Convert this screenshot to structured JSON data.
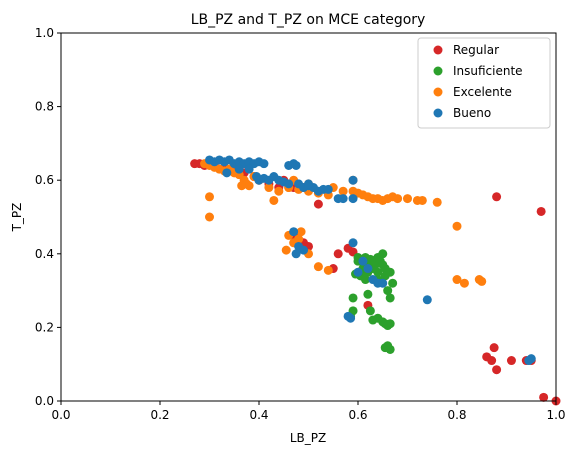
{
  "chart_data": {
    "type": "scatter",
    "title": "LB_PZ and T_PZ on MCE category",
    "xlabel": "LB_PZ",
    "ylabel": "T_PZ",
    "xlim": [
      0.0,
      1.0
    ],
    "ylim": [
      0.0,
      1.0
    ],
    "xticks": [
      "0.0",
      "0.2",
      "0.4",
      "0.6",
      "0.8",
      "1.0"
    ],
    "yticks": [
      "0.0",
      "0.2",
      "0.4",
      "0.6",
      "0.8",
      "1.0"
    ],
    "grid": false,
    "legend_position": "top-right",
    "series": [
      {
        "name": "Regular",
        "color": "#d62728",
        "points": [
          [
            0.27,
            0.645
          ],
          [
            0.28,
            0.645
          ],
          [
            0.29,
            0.64
          ],
          [
            0.31,
            0.64
          ],
          [
            0.33,
            0.635
          ],
          [
            0.35,
            0.63
          ],
          [
            0.37,
            0.62
          ],
          [
            0.39,
            0.61
          ],
          [
            0.4,
            0.6
          ],
          [
            0.42,
            0.59
          ],
          [
            0.44,
            0.58
          ],
          [
            0.45,
            0.6
          ],
          [
            0.47,
            0.58
          ],
          [
            0.49,
            0.58
          ],
          [
            0.52,
            0.535
          ],
          [
            0.47,
            0.45
          ],
          [
            0.49,
            0.43
          ],
          [
            0.5,
            0.42
          ],
          [
            0.55,
            0.36
          ],
          [
            0.56,
            0.4
          ],
          [
            0.58,
            0.415
          ],
          [
            0.59,
            0.405
          ],
          [
            0.62,
            0.26
          ],
          [
            0.86,
            0.12
          ],
          [
            0.87,
            0.11
          ],
          [
            0.875,
            0.145
          ],
          [
            0.88,
            0.085
          ],
          [
            0.88,
            0.555
          ],
          [
            0.91,
            0.11
          ],
          [
            0.94,
            0.11
          ],
          [
            0.95,
            0.11
          ],
          [
            0.97,
            0.515
          ],
          [
            0.975,
            0.01
          ],
          [
            1.0,
            0.0
          ]
        ]
      },
      {
        "name": "Insuficiente",
        "color": "#2ca02c",
        "points": [
          [
            0.585,
            0.23
          ],
          [
            0.59,
            0.245
          ],
          [
            0.59,
            0.28
          ],
          [
            0.595,
            0.345
          ],
          [
            0.6,
            0.38
          ],
          [
            0.6,
            0.39
          ],
          [
            0.61,
            0.375
          ],
          [
            0.61,
            0.36
          ],
          [
            0.615,
            0.39
          ],
          [
            0.62,
            0.37
          ],
          [
            0.62,
            0.35
          ],
          [
            0.625,
            0.385
          ],
          [
            0.63,
            0.38
          ],
          [
            0.63,
            0.36
          ],
          [
            0.635,
            0.37
          ],
          [
            0.64,
            0.39
          ],
          [
            0.64,
            0.35
          ],
          [
            0.645,
            0.38
          ],
          [
            0.65,
            0.4
          ],
          [
            0.65,
            0.37
          ],
          [
            0.655,
            0.36
          ],
          [
            0.655,
            0.34
          ],
          [
            0.66,
            0.3
          ],
          [
            0.665,
            0.28
          ],
          [
            0.665,
            0.35
          ],
          [
            0.67,
            0.32
          ],
          [
            0.62,
            0.29
          ],
          [
            0.625,
            0.245
          ],
          [
            0.63,
            0.22
          ],
          [
            0.64,
            0.225
          ],
          [
            0.65,
            0.215
          ],
          [
            0.655,
            0.21
          ],
          [
            0.66,
            0.205
          ],
          [
            0.665,
            0.21
          ],
          [
            0.66,
            0.15
          ],
          [
            0.665,
            0.14
          ],
          [
            0.655,
            0.145
          ],
          [
            0.605,
            0.34
          ],
          [
            0.615,
            0.33
          ],
          [
            0.64,
            0.33
          ]
        ]
      },
      {
        "name": "Excelente",
        "color": "#ff7f0e",
        "points": [
          [
            0.29,
            0.645
          ],
          [
            0.3,
            0.64
          ],
          [
            0.31,
            0.635
          ],
          [
            0.32,
            0.63
          ],
          [
            0.33,
            0.625
          ],
          [
            0.34,
            0.63
          ],
          [
            0.35,
            0.62
          ],
          [
            0.36,
            0.615
          ],
          [
            0.37,
            0.6
          ],
          [
            0.375,
            0.59
          ],
          [
            0.38,
            0.585
          ],
          [
            0.39,
            0.61
          ],
          [
            0.4,
            0.6
          ],
          [
            0.42,
            0.58
          ],
          [
            0.44,
            0.57
          ],
          [
            0.46,
            0.58
          ],
          [
            0.48,
            0.575
          ],
          [
            0.5,
            0.57
          ],
          [
            0.52,
            0.565
          ],
          [
            0.54,
            0.56
          ],
          [
            0.55,
            0.58
          ],
          [
            0.57,
            0.57
          ],
          [
            0.59,
            0.57
          ],
          [
            0.6,
            0.565
          ],
          [
            0.59,
            0.6
          ],
          [
            0.61,
            0.56
          ],
          [
            0.62,
            0.555
          ],
          [
            0.63,
            0.55
          ],
          [
            0.64,
            0.55
          ],
          [
            0.65,
            0.545
          ],
          [
            0.66,
            0.55
          ],
          [
            0.67,
            0.555
          ],
          [
            0.68,
            0.55
          ],
          [
            0.7,
            0.55
          ],
          [
            0.72,
            0.545
          ],
          [
            0.73,
            0.545
          ],
          [
            0.76,
            0.54
          ],
          [
            0.8,
            0.475
          ],
          [
            0.3,
            0.555
          ],
          [
            0.3,
            0.5
          ],
          [
            0.365,
            0.585
          ],
          [
            0.43,
            0.545
          ],
          [
            0.46,
            0.45
          ],
          [
            0.47,
            0.43
          ],
          [
            0.48,
            0.44
          ],
          [
            0.5,
            0.4
          ],
          [
            0.52,
            0.365
          ],
          [
            0.54,
            0.355
          ],
          [
            0.8,
            0.33
          ],
          [
            0.815,
            0.32
          ],
          [
            0.845,
            0.33
          ],
          [
            0.85,
            0.325
          ],
          [
            0.455,
            0.41
          ],
          [
            0.485,
            0.46
          ],
          [
            0.46,
            0.58
          ],
          [
            0.47,
            0.6
          ],
          [
            0.5,
            0.59
          ]
        ]
      },
      {
        "name": "Bueno",
        "color": "#1f77b4",
        "points": [
          [
            0.3,
            0.655
          ],
          [
            0.31,
            0.65
          ],
          [
            0.32,
            0.655
          ],
          [
            0.33,
            0.65
          ],
          [
            0.34,
            0.655
          ],
          [
            0.35,
            0.645
          ],
          [
            0.36,
            0.65
          ],
          [
            0.37,
            0.645
          ],
          [
            0.38,
            0.65
          ],
          [
            0.39,
            0.645
          ],
          [
            0.4,
            0.65
          ],
          [
            0.41,
            0.645
          ],
          [
            0.395,
            0.61
          ],
          [
            0.4,
            0.6
          ],
          [
            0.41,
            0.605
          ],
          [
            0.42,
            0.6
          ],
          [
            0.43,
            0.61
          ],
          [
            0.44,
            0.6
          ],
          [
            0.45,
            0.595
          ],
          [
            0.46,
            0.64
          ],
          [
            0.47,
            0.645
          ],
          [
            0.475,
            0.64
          ],
          [
            0.48,
            0.59
          ],
          [
            0.49,
            0.58
          ],
          [
            0.5,
            0.585
          ],
          [
            0.51,
            0.58
          ],
          [
            0.52,
            0.57
          ],
          [
            0.53,
            0.575
          ],
          [
            0.54,
            0.575
          ],
          [
            0.5,
            0.59
          ],
          [
            0.46,
            0.59
          ],
          [
            0.56,
            0.55
          ],
          [
            0.57,
            0.55
          ],
          [
            0.59,
            0.6
          ],
          [
            0.59,
            0.55
          ],
          [
            0.59,
            0.43
          ],
          [
            0.47,
            0.46
          ],
          [
            0.48,
            0.42
          ],
          [
            0.475,
            0.4
          ],
          [
            0.49,
            0.41
          ],
          [
            0.58,
            0.23
          ],
          [
            0.585,
            0.225
          ],
          [
            0.6,
            0.35
          ],
          [
            0.61,
            0.38
          ],
          [
            0.62,
            0.36
          ],
          [
            0.63,
            0.33
          ],
          [
            0.64,
            0.32
          ],
          [
            0.65,
            0.32
          ],
          [
            0.74,
            0.275
          ],
          [
            0.945,
            0.11
          ],
          [
            0.95,
            0.115
          ],
          [
            0.335,
            0.62
          ],
          [
            0.36,
            0.63
          ],
          [
            0.38,
            0.63
          ]
        ]
      }
    ]
  }
}
